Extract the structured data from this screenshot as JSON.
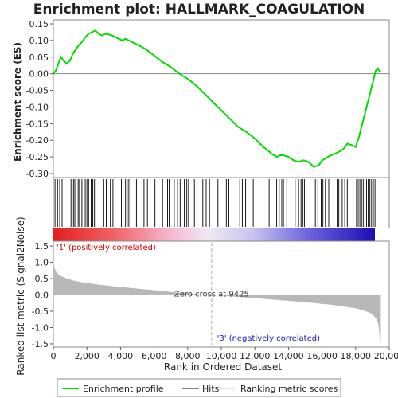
{
  "chart_data": {
    "title": "Enrichment plot: HALLMARK_COAGULATION",
    "es_panel": {
      "type": "line",
      "ylabel": "Enrichment score (ES)",
      "ylim": [
        -0.3,
        0.15
      ],
      "yticks": [
        "0.15",
        "0.10",
        "0.05",
        "0.00",
        "-0.05",
        "-0.10",
        "-0.15",
        "-0.20",
        "-0.25",
        "-0.30"
      ],
      "series": [
        {
          "name": "Enrichment profile",
          "color": "#00dd00",
          "x": [
            0,
            150,
            300,
            450,
            600,
            800,
            1000,
            1150,
            1300,
            1500,
            1700,
            1900,
            2100,
            2300,
            2500,
            2700,
            2900,
            3100,
            3300,
            3500,
            3700,
            3900,
            4100,
            4300,
            4500,
            4700,
            4900,
            5100,
            5300,
            5600,
            6000,
            6500,
            7000,
            7500,
            8000,
            8500,
            9000,
            9500,
            10000,
            10500,
            11000,
            11500,
            12000,
            12500,
            13000,
            13300,
            13500,
            13700,
            14000,
            14300,
            14600,
            14900,
            15200,
            15500,
            15800,
            16000,
            16200,
            16500,
            16800,
            17000,
            17300,
            17500,
            17800,
            18000,
            18200,
            18300,
            18400,
            18500,
            18600,
            18700,
            18800,
            18900,
            19000,
            19100,
            19200,
            19300,
            19400,
            19500
          ],
          "y": [
            0.0,
            0.01,
            0.03,
            0.05,
            0.04,
            0.03,
            0.04,
            0.06,
            0.07,
            0.085,
            0.095,
            0.11,
            0.12,
            0.125,
            0.13,
            0.12,
            0.115,
            0.12,
            0.118,
            0.115,
            0.11,
            0.105,
            0.1,
            0.105,
            0.1,
            0.095,
            0.09,
            0.085,
            0.08,
            0.07,
            0.055,
            0.035,
            0.02,
            0.0,
            -0.015,
            -0.035,
            -0.06,
            -0.085,
            -0.11,
            -0.135,
            -0.16,
            -0.175,
            -0.195,
            -0.22,
            -0.24,
            -0.25,
            -0.245,
            -0.245,
            -0.25,
            -0.26,
            -0.265,
            -0.26,
            -0.265,
            -0.28,
            -0.275,
            -0.26,
            -0.255,
            -0.245,
            -0.24,
            -0.235,
            -0.225,
            -0.21,
            -0.215,
            -0.22,
            -0.19,
            -0.17,
            -0.15,
            -0.13,
            -0.11,
            -0.09,
            -0.07,
            -0.05,
            -0.03,
            -0.01,
            0.01,
            0.015,
            0.01,
            0.005
          ]
        }
      ]
    },
    "hits_panel": {
      "hit_positions": [
        100,
        250,
        380,
        520,
        1050,
        1200,
        1280,
        1350,
        1480,
        1560,
        1700,
        1900,
        2000,
        2100,
        2250,
        2350,
        2450,
        3000,
        3150,
        3400,
        3550,
        4050,
        4150,
        4300,
        4400,
        4500,
        4950,
        5400,
        5600,
        6050,
        6500,
        6800,
        6900,
        7200,
        7400,
        7550,
        7800,
        7950,
        8050,
        8400,
        8550,
        8900,
        9100,
        9300,
        9800,
        10300,
        10450,
        11100,
        11250,
        11450,
        11900,
        12850,
        13300,
        13450,
        13600,
        13700,
        13900,
        14400,
        14600,
        14750,
        14850,
        14950,
        15600,
        15750,
        15950,
        16050,
        16200,
        16400,
        16700,
        16900,
        17000,
        17200,
        17350,
        17500,
        17850,
        18050,
        18150,
        18250,
        18350,
        18450,
        18550,
        18650,
        18750,
        18850,
        18950,
        19050,
        19150
      ]
    },
    "metric_panel": {
      "type": "area",
      "ylabel": "Ranked list metric (Signal2Noise)",
      "ylim": [
        -1.55,
        1.6
      ],
      "yticks": [
        "1.5",
        "1.0",
        "0.5",
        "0.0",
        "-0.5",
        "-1.0",
        "-1.5"
      ],
      "x": [
        0,
        50,
        150,
        300,
        500,
        800,
        1200,
        1800,
        2500,
        3500,
        4500,
        5500,
        6500,
        7500,
        8500,
        9425,
        10500,
        11500,
        12500,
        13500,
        14500,
        15500,
        16500,
        17500,
        18000,
        18500,
        18900,
        19200,
        19350,
        19450,
        19500
      ],
      "values": [
        1.05,
        0.85,
        0.72,
        0.63,
        0.57,
        0.5,
        0.44,
        0.38,
        0.33,
        0.27,
        0.22,
        0.17,
        0.12,
        0.07,
        0.03,
        0.0,
        -0.04,
        -0.08,
        -0.12,
        -0.16,
        -0.2,
        -0.25,
        -0.3,
        -0.37,
        -0.41,
        -0.48,
        -0.56,
        -0.7,
        -0.88,
        -1.4,
        -1.45
      ],
      "zero_cross_label": "Zero cross at 9425",
      "zero_cross": 9425,
      "pos_label": "'1' (positively correlated)",
      "neg_label": "'3' (negatively correlated)"
    },
    "x_axis": {
      "label": "Rank in Ordered Dataset",
      "xlim": [
        0,
        20000
      ],
      "ticks": [
        "0",
        "2,000",
        "4,000",
        "6,000",
        "8,000",
        "10,000",
        "12,000",
        "14,000",
        "16,000",
        "18,000",
        "20,000"
      ],
      "dataset_size": 19500
    },
    "legend": {
      "items": [
        {
          "label": "Enrichment profile",
          "color": "#00dd00"
        },
        {
          "label": "Hits",
          "color": "#000000"
        },
        {
          "label": "Ranking metric scores",
          "color": "#cccccc"
        }
      ]
    }
  }
}
